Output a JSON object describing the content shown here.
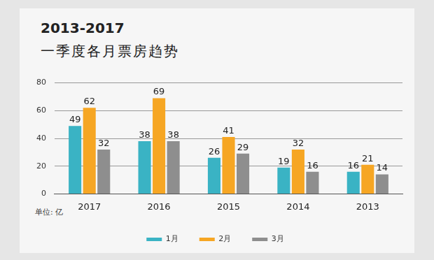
{
  "chart_data": {
    "type": "bar",
    "title": "2013-2017",
    "subtitle": "一季度各月票房趋势",
    "y_label": "单位: 亿",
    "categories": [
      "2017",
      "2016",
      "2015",
      "2014",
      "2013"
    ],
    "series": [
      {
        "name": "1月",
        "color": "#3ab3c4",
        "values": [
          49,
          38,
          26,
          19,
          16
        ]
      },
      {
        "name": "2月",
        "color": "#f6a623",
        "values": [
          62,
          69,
          41,
          32,
          21
        ]
      },
      {
        "name": "3月",
        "color": "#8e8e8e",
        "values": [
          32,
          38,
          29,
          16,
          14
        ]
      }
    ],
    "ylim": [
      0,
      80
    ],
    "yticks": [
      0,
      20,
      40,
      60,
      80
    ],
    "grid": true,
    "legend": "bottom",
    "data_labels": true
  }
}
